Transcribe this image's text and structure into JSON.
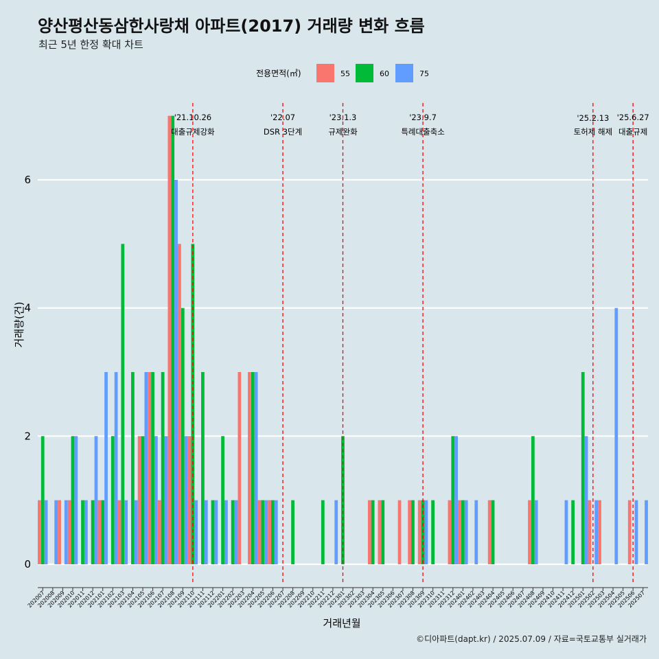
{
  "title": "양산평산동삼한사랑채 아파트(2017) 거래량 변화 흐름",
  "subtitle": "최근 5년 한정 확대 차트",
  "caption": "©디아파트(dapt.kr) / 2025.07.09 / 자료=국토교통부 실거래가",
  "colors": {
    "s55": "#f8766d",
    "s60": "#00ba38",
    "s75": "#619cff",
    "background": "#d9e6ec",
    "grid": "#ffffff",
    "event_line": "#ff0000"
  },
  "chart_data": {
    "type": "bar",
    "xlabel": "거래년월",
    "ylabel": "거래량(건)",
    "ylim": [
      -0.3,
      7.2
    ],
    "yticks": [
      0,
      2,
      4,
      6
    ],
    "legend": {
      "title": "전용면적(㎡)",
      "position": "top"
    },
    "months": [
      "202007",
      "202008",
      "202009",
      "202010",
      "202011",
      "202012",
      "202101",
      "202102",
      "202103",
      "202104",
      "202105",
      "202106",
      "202107",
      "202108",
      "202109",
      "202110",
      "202111",
      "202112",
      "202201",
      "202202",
      "202203",
      "202204",
      "202205",
      "202206",
      "202207",
      "202208",
      "202209",
      "202210",
      "202211",
      "202212",
      "202301",
      "202302",
      "202303",
      "202304",
      "202305",
      "202306",
      "202307",
      "202308",
      "202309",
      "202310",
      "202311",
      "202312",
      "202401",
      "202402",
      "202403",
      "202404",
      "202405",
      "202406",
      "202407",
      "202408",
      "202409",
      "202410",
      "202411",
      "202412",
      "202501",
      "202502",
      "202503",
      "202504",
      "202505",
      "202506",
      "202507"
    ],
    "series": [
      {
        "name": "55",
        "values": [
          1,
          0,
          1,
          1,
          0,
          0,
          1,
          0,
          1,
          0,
          2,
          3,
          1,
          7,
          5,
          2,
          0,
          0,
          0,
          0,
          3,
          3,
          1,
          1,
          0,
          0,
          0,
          0,
          0,
          0,
          0,
          0,
          0,
          1,
          1,
          0,
          1,
          1,
          1,
          0,
          0,
          1,
          1,
          0,
          0,
          1,
          0,
          0,
          0,
          1,
          0,
          0,
          0,
          0,
          0,
          1,
          1,
          0,
          0,
          1,
          0
        ]
      },
      {
        "name": "60",
        "values": [
          2,
          0,
          0,
          2,
          1,
          1,
          1,
          2,
          5,
          3,
          2,
          3,
          3,
          7,
          4,
          5,
          3,
          1,
          2,
          1,
          0,
          3,
          1,
          1,
          0,
          1,
          0,
          0,
          1,
          0,
          2,
          0,
          0,
          1,
          1,
          0,
          0,
          1,
          1,
          1,
          0,
          2,
          1,
          0,
          0,
          1,
          0,
          0,
          0,
          2,
          0,
          0,
          0,
          1,
          3,
          0,
          0,
          0,
          0,
          0,
          0
        ]
      },
      {
        "name": "75",
        "values": [
          1,
          1,
          1,
          2,
          1,
          2,
          3,
          3,
          1,
          1,
          3,
          2,
          2,
          6,
          2,
          1,
          1,
          1,
          1,
          1,
          0,
          3,
          1,
          1,
          0,
          0,
          0,
          0,
          0,
          1,
          0,
          0,
          0,
          0,
          0,
          0,
          0,
          0,
          1,
          0,
          0,
          2,
          1,
          1,
          0,
          0,
          0,
          0,
          0,
          1,
          0,
          0,
          1,
          0,
          2,
          1,
          0,
          4,
          0,
          1,
          1
        ]
      }
    ],
    "events": [
      {
        "date": "'21.10.26",
        "label": "대출규제강화",
        "x": "202110"
      },
      {
        "date": "'22.07",
        "label": "DSR 3단계",
        "x": "202207"
      },
      {
        "date": "'23.1.3",
        "label": "규제완화",
        "x": "202301"
      },
      {
        "date": "'23.9.7",
        "label": "특례대출축소",
        "x": "202309"
      },
      {
        "date": "'25.2.13",
        "label": "토허제 해제",
        "x": "202502"
      },
      {
        "date": "'25.6.27",
        "label": "대출규제",
        "x": "202506"
      }
    ]
  }
}
